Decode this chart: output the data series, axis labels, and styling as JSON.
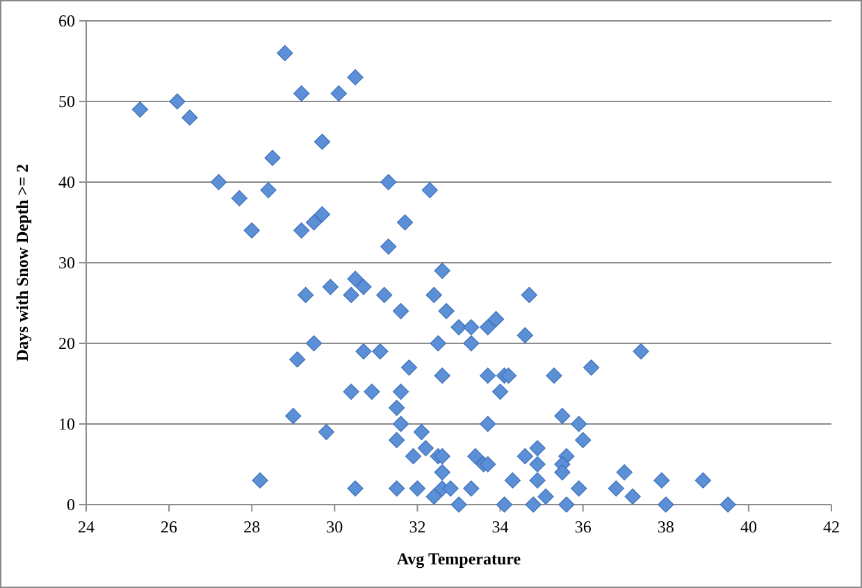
{
  "chart_data": {
    "type": "scatter",
    "xlabel": "Avg Temperature",
    "ylabel": "Days with Snow Depth >= 2",
    "xlim": [
      24,
      42
    ],
    "ylim": [
      0,
      60
    ],
    "xticks": [
      24,
      26,
      28,
      30,
      32,
      34,
      36,
      38,
      40,
      42
    ],
    "yticks": [
      0,
      10,
      20,
      30,
      40,
      50,
      60
    ],
    "grid": "y",
    "marker": "diamond",
    "series": [
      {
        "color": "#5b8fd6",
        "x": [
          25.3,
          26.2,
          26.5,
          27.2,
          27.7,
          28.0,
          28.5,
          28.4,
          28.8,
          29.2,
          29.7,
          29.2,
          29.5,
          29.7,
          30.1,
          30.5,
          31.3,
          31.7,
          32.3,
          31.3,
          28.2,
          29.0,
          29.1,
          29.3,
          29.5,
          29.8,
          29.9,
          30.4,
          30.5,
          30.7,
          30.4,
          30.5,
          30.7,
          30.9,
          31.1,
          31.2,
          31.6,
          31.5,
          31.5,
          31.6,
          31.6,
          31.8,
          31.5,
          31.9,
          32.0,
          32.1,
          32.2,
          32.4,
          32.4,
          32.6,
          32.5,
          32.6,
          32.7,
          32.5,
          32.6,
          32.6,
          32.6,
          32.8,
          33.0,
          33.0,
          33.3,
          33.3,
          33.4,
          33.3,
          33.7,
          33.7,
          33.7,
          33.6,
          33.7,
          33.9,
          34.0,
          34.1,
          34.2,
          34.3,
          34.1,
          34.6,
          34.7,
          34.6,
          34.9,
          34.9,
          34.9,
          34.8,
          35.1,
          35.3,
          35.5,
          35.6,
          35.5,
          35.5,
          35.6,
          35.9,
          36.0,
          35.9,
          36.2,
          36.8,
          37.0,
          37.2,
          37.4,
          37.9,
          38.0,
          38.9,
          39.5
        ],
        "values": [
          49,
          50,
          48,
          40,
          38,
          34,
          43,
          39,
          56,
          51,
          45,
          34,
          35,
          36,
          51,
          53,
          40,
          35,
          39,
          32,
          3,
          11,
          18,
          26,
          20,
          9,
          27,
          26,
          28,
          27,
          14,
          2,
          19,
          14,
          19,
          26,
          24,
          12,
          8,
          14,
          10,
          17,
          2,
          6,
          2,
          9,
          7,
          1,
          26,
          29,
          20,
          16,
          24,
          6,
          6,
          4,
          2,
          2,
          22,
          0,
          22,
          20,
          6,
          2,
          22,
          16,
          10,
          5,
          5,
          23,
          14,
          16,
          16,
          3,
          0,
          21,
          26,
          6,
          7,
          5,
          3,
          0,
          1,
          16,
          11,
          6,
          5,
          4,
          0,
          10,
          8,
          2,
          17,
          2,
          4,
          1,
          19,
          3,
          0,
          3,
          0
        ]
      }
    ]
  }
}
